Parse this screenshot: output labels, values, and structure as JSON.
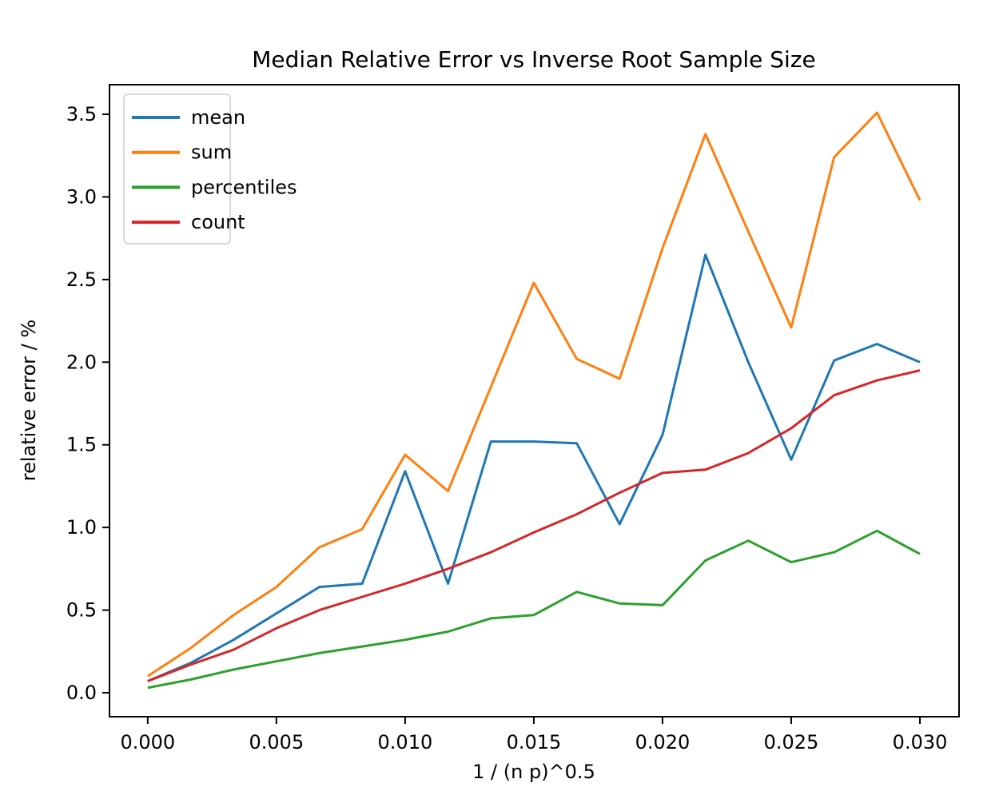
{
  "title": "Median Relative Error vs Inverse Root Sample Size",
  "chart_data": {
    "type": "line",
    "title": "Median Relative Error vs Inverse Root Sample Size",
    "xlabel": "1 / (n p)^0.5",
    "ylabel": "relative error / %",
    "grid": false,
    "legend_position": "upper left",
    "background_color": "#ffffff",
    "spine_color": "#000000",
    "legend_border_color": "#cccccc",
    "xlim": [
      -0.001485,
      0.03152
    ],
    "ylim": [
      -0.145,
      3.679
    ],
    "x_ticks": [
      0.0,
      0.005,
      0.01,
      0.015,
      0.02,
      0.025,
      0.03
    ],
    "x_tick_labels": [
      "0.000",
      "0.005",
      "0.010",
      "0.015",
      "0.020",
      "0.025",
      "0.030"
    ],
    "y_ticks": [
      0.0,
      0.5,
      1.0,
      1.5,
      2.0,
      2.5,
      3.0,
      3.5
    ],
    "y_tick_labels": [
      "0.0",
      "0.5",
      "1.0",
      "1.5",
      "2.0",
      "2.5",
      "3.0",
      "3.5"
    ],
    "x": [
      0.0,
      0.001667,
      0.003333,
      0.005,
      0.006667,
      0.008333,
      0.01,
      0.011667,
      0.013333,
      0.015,
      0.016667,
      0.018333,
      0.02,
      0.021667,
      0.023333,
      0.025,
      0.026667,
      0.028333,
      0.03
    ],
    "series": [
      {
        "name": "mean",
        "color": "#1f77b4",
        "values": [
          0.07,
          0.18,
          0.32,
          0.48,
          0.64,
          0.66,
          1.34,
          0.66,
          1.52,
          1.52,
          1.51,
          1.02,
          1.56,
          2.65,
          2.0,
          1.41,
          2.01,
          2.11,
          2.0
        ]
      },
      {
        "name": "sum",
        "color": "#ff7f0e",
        "values": [
          0.1,
          0.27,
          0.47,
          0.64,
          0.88,
          0.99,
          1.44,
          1.22,
          1.85,
          2.48,
          2.02,
          1.9,
          2.69,
          3.38,
          2.79,
          2.21,
          3.24,
          3.51,
          2.98
        ]
      },
      {
        "name": "percentiles",
        "color": "#2ca02c",
        "values": [
          0.03,
          0.08,
          0.14,
          0.19,
          0.24,
          0.28,
          0.32,
          0.37,
          0.45,
          0.47,
          0.61,
          0.54,
          0.53,
          0.8,
          0.92,
          0.79,
          0.85,
          0.98,
          0.84
        ]
      },
      {
        "name": "count",
        "color": "#d62728",
        "values": [
          0.07,
          0.17,
          0.26,
          0.39,
          0.5,
          0.58,
          0.66,
          0.75,
          0.85,
          0.97,
          1.08,
          1.21,
          1.33,
          1.35,
          1.45,
          1.6,
          1.8,
          1.89,
          1.95
        ]
      }
    ]
  }
}
